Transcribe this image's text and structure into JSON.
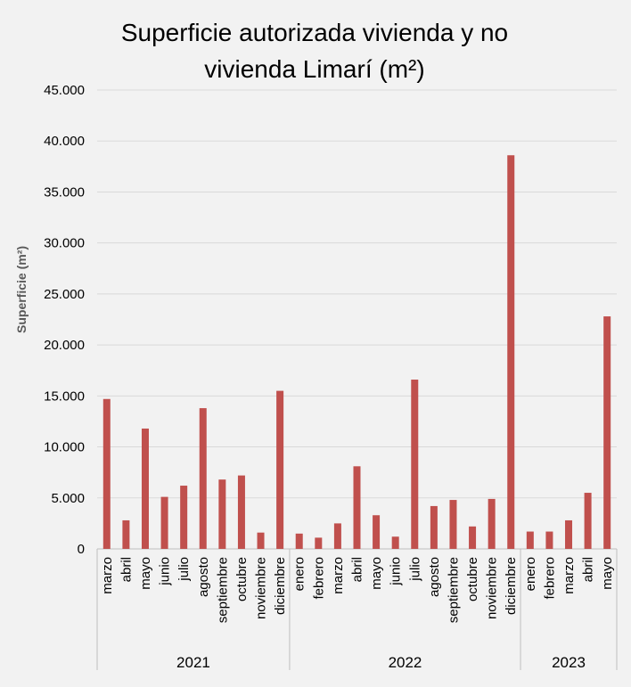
{
  "chart_data": {
    "type": "bar",
    "title_lines": [
      "Superficie autorizada vivienda y no",
      "vivienda Limarí (m²)"
    ],
    "ylabel": "Superficie  (m²)",
    "xlabel": "",
    "ylim": [
      0,
      45000
    ],
    "y_ticks": [
      0,
      5000,
      10000,
      15000,
      20000,
      25000,
      30000,
      35000,
      40000,
      45000
    ],
    "y_tick_labels": [
      "0",
      "5.000",
      "10.000",
      "15.000",
      "20.000",
      "25.000",
      "30.000",
      "35.000",
      "40.000",
      "45.000"
    ],
    "grid": true,
    "bar_color": "#c0504d",
    "groups": [
      {
        "year": "2021",
        "categories": [
          "marzo",
          "abril",
          "mayo",
          "junio",
          "julio",
          "agosto",
          "septiembre",
          "octubre",
          "noviembre",
          "diciembre"
        ],
        "values": [
          14700,
          2800,
          11800,
          5100,
          6200,
          13800,
          6800,
          7200,
          1600,
          15500
        ]
      },
      {
        "year": "2022",
        "categories": [
          "enero",
          "febrero",
          "marzo",
          "abril",
          "mayo",
          "junio",
          "julio",
          "agosto",
          "septiembre",
          "octubre",
          "noviembre",
          "diciembre"
        ],
        "values": [
          1500,
          1100,
          2500,
          8100,
          3300,
          1200,
          16600,
          4200,
          4800,
          2200,
          4900,
          38600
        ]
      },
      {
        "year": "2023",
        "categories": [
          "enero",
          "febrero",
          "marzo",
          "abril",
          "mayo"
        ],
        "values": [
          1700,
          1700,
          2800,
          5500,
          22800
        ]
      }
    ]
  }
}
